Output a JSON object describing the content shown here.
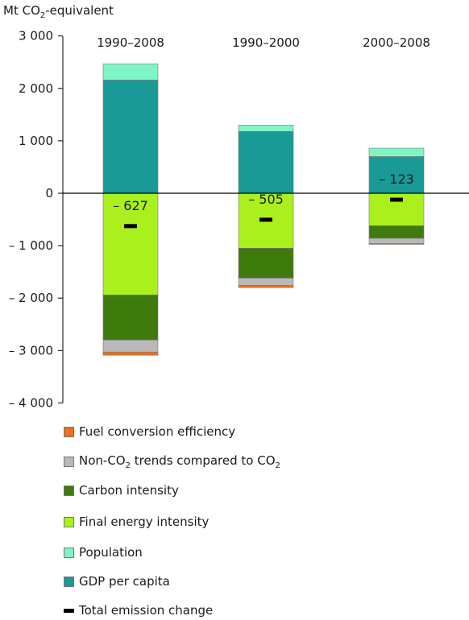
{
  "chart_data": {
    "type": "bar",
    "stacked": true,
    "ylabel_prefix": "Mt CO",
    "ylabel_sub": "2",
    "ylabel_suffix": "-equivalent",
    "ylim": [
      -4000,
      3000
    ],
    "yticks": [
      3000,
      2000,
      1000,
      0,
      -1000,
      -2000,
      -3000,
      -4000
    ],
    "ytick_labels": [
      "3 000",
      "2 000",
      "1 000",
      "0",
      "– 1 000",
      "– 2 000",
      "– 3 000",
      "– 4 000"
    ],
    "categories": [
      "1990–2008",
      "1990–2000",
      "2000–2008"
    ],
    "series": [
      {
        "name": "GDP per capita",
        "color": "#1a9a96",
        "values": [
          2160,
          1180,
          700
        ]
      },
      {
        "name": "Population",
        "color": "#80f5c4",
        "values": [
          310,
          120,
          160
        ]
      },
      {
        "name": "Final energy intensity",
        "color": "#aaf01e",
        "values": [
          -1940,
          -1050,
          -620
        ]
      },
      {
        "name": "Carbon intensity",
        "color": "#3f7a0c",
        "values": [
          -860,
          -570,
          -240
        ]
      },
      {
        "name": "Non-CO2 trends compared to CO2",
        "color": "#b9b9b9",
        "values": [
          -230,
          -140,
          -100
        ]
      },
      {
        "name": "Fuel conversion efficiency",
        "color": "#f26d1d",
        "values": [
          -60,
          -40,
          -15
        ]
      }
    ],
    "total_emission_change": {
      "name": "Total emission change",
      "values": [
        -627,
        -505,
        -123
      ],
      "labels": [
        "– 627",
        "– 505",
        "– 123"
      ]
    },
    "legend": {
      "placement": "bottom",
      "items": [
        {
          "key": "fuel",
          "label": "Fuel conversion efficiency",
          "color": "#f26d1d"
        },
        {
          "key": "nonco2",
          "label_pre": "Non-CO",
          "label_sub": "2",
          "label_mid": " trends compared to CO",
          "label_sub2": "2",
          "color": "#b9b9b9"
        },
        {
          "key": "carbon",
          "label": "Carbon intensity",
          "color": "#3f7a0c"
        },
        {
          "key": "energy",
          "label": "Final energy intensity",
          "color": "#aaf01e"
        },
        {
          "key": "population",
          "label": "Population",
          "color": "#80f5c4"
        },
        {
          "key": "gdp",
          "label": "GDP per capita",
          "color": "#1a9a96"
        },
        {
          "key": "total",
          "label": "Total emission change",
          "color": "#000000"
        }
      ]
    }
  }
}
